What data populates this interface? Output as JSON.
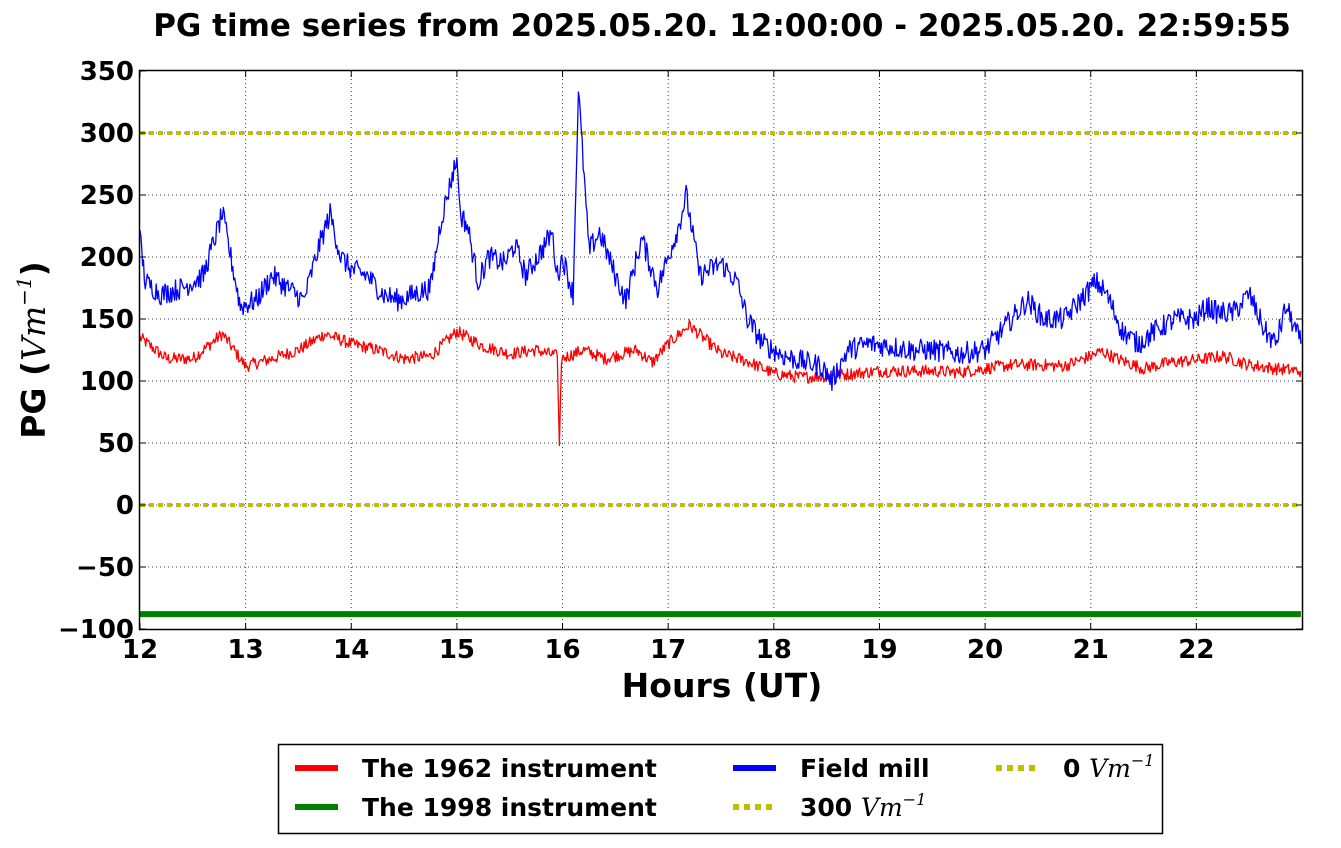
{
  "chart_data": {
    "type": "line",
    "title": "PG time series from 2025.05.20. 12:00:00 - 2025.05.20. 22:59:55",
    "xlabel": "Hours (UT)",
    "ylabel": "PG (",
    "ylabel_unit": "Vm",
    "ylabel_unit_exp": "−1",
    "ylabel_close": ")",
    "xlim": [
      12,
      23
    ],
    "ylim": [
      -100,
      350
    ],
    "x_ticks": [
      12,
      13,
      14,
      15,
      16,
      17,
      18,
      19,
      20,
      21,
      22
    ],
    "x_tick_labels": [
      "12",
      "13",
      "14",
      "15",
      "16",
      "17",
      "18",
      "19",
      "20",
      "21",
      "22"
    ],
    "y_ticks": [
      350,
      300,
      250,
      200,
      150,
      100,
      50,
      0,
      -50,
      -100
    ],
    "y_tick_labels": [
      "350",
      "300",
      "250",
      "200",
      "150",
      "100",
      "50",
      "0",
      "−50",
      "−100"
    ],
    "grid": true,
    "legend_position": "bottom-center, below plot",
    "series": [
      {
        "name": "The 1962 instrument",
        "color": "#ff0000",
        "style": "solid",
        "x": [
          12.0,
          12.25,
          12.5,
          12.78,
          13.0,
          13.25,
          13.5,
          13.75,
          14.0,
          14.25,
          14.5,
          14.75,
          15.0,
          15.25,
          15.5,
          15.75,
          15.95,
          15.97,
          15.99,
          16.2,
          16.4,
          16.7,
          16.85,
          17.0,
          17.2,
          17.5,
          17.75,
          18.0,
          18.25,
          18.5,
          18.75,
          19.0,
          19.25,
          19.5,
          19.75,
          20.0,
          20.25,
          20.5,
          20.75,
          21.0,
          21.1,
          21.25,
          21.5,
          21.75,
          22.0,
          22.25,
          22.5,
          22.75,
          22.99
        ],
        "y": [
          135,
          118,
          118,
          138,
          112,
          118,
          125,
          138,
          130,
          125,
          118,
          120,
          140,
          128,
          122,
          125,
          120,
          48,
          118,
          125,
          118,
          125,
          115,
          130,
          145,
          122,
          116,
          106,
          103,
          104,
          106,
          108,
          108,
          108,
          107,
          110,
          113,
          113,
          112,
          120,
          124,
          118,
          110,
          115,
          117,
          120,
          113,
          110,
          108
        ]
      },
      {
        "name": "The 1998 instrument",
        "color": "#008000",
        "style": "solid",
        "x": [
          12.0,
          22.99
        ],
        "y": [
          -88,
          -88
        ]
      },
      {
        "name": "Field mill",
        "color": "#0000ff",
        "style": "solid",
        "x": [
          12.0,
          12.05,
          12.2,
          12.4,
          12.6,
          12.78,
          12.95,
          13.1,
          13.25,
          13.4,
          13.55,
          13.7,
          13.8,
          13.9,
          14.0,
          14.15,
          14.3,
          14.45,
          14.6,
          14.75,
          14.85,
          15.0,
          15.03,
          15.1,
          15.2,
          15.3,
          15.45,
          15.55,
          15.65,
          15.8,
          15.9,
          15.95,
          16.0,
          16.1,
          16.15,
          16.25,
          16.35,
          16.5,
          16.6,
          16.75,
          16.9,
          17.0,
          17.1,
          17.17,
          17.3,
          17.5,
          17.65,
          17.75,
          17.9,
          18.1,
          18.3,
          18.45,
          18.55,
          18.7,
          18.9,
          19.1,
          19.3,
          19.5,
          19.75,
          20.0,
          20.2,
          20.4,
          20.55,
          20.75,
          20.9,
          21.05,
          21.15,
          21.3,
          21.45,
          21.6,
          21.8,
          22.0,
          22.1,
          22.2,
          22.35,
          22.5,
          22.65,
          22.75,
          22.85,
          22.99
        ],
        "y": [
          215,
          180,
          170,
          175,
          185,
          235,
          160,
          165,
          185,
          175,
          165,
          210,
          235,
          200,
          190,
          185,
          170,
          165,
          170,
          175,
          230,
          280,
          235,
          225,
          180,
          200,
          195,
          210,
          185,
          205,
          220,
          185,
          200,
          170,
          335,
          205,
          220,
          185,
          165,
          215,
          175,
          200,
          225,
          250,
          185,
          195,
          180,
          150,
          130,
          120,
          115,
          112,
          100,
          125,
          130,
          128,
          125,
          125,
          122,
          125,
          145,
          165,
          150,
          150,
          165,
          180,
          170,
          140,
          130,
          140,
          150,
          150,
          160,
          155,
          155,
          170,
          140,
          130,
          160,
          130
        ]
      },
      {
        "name": "300 Vm⁻¹",
        "color": "#bfbf00",
        "style": "dotted",
        "x": [
          12.0,
          22.99
        ],
        "y": [
          300,
          300
        ]
      },
      {
        "name": "0 Vm⁻¹",
        "color": "#bfbf00",
        "style": "dotted",
        "x": [
          12.0,
          22.99
        ],
        "y": [
          0,
          0
        ]
      }
    ]
  },
  "legend": {
    "entries": [
      {
        "label": "The 1962 instrument",
        "color": "#ff0000",
        "style": "solid"
      },
      {
        "label": "The 1998 instrument",
        "color": "#008000",
        "style": "solid"
      },
      {
        "label": "Field mill",
        "color": "#0000ff",
        "style": "solid"
      },
      {
        "label": "300 ",
        "unit": "Vm",
        "exp": "−1",
        "color": "#bfbf00",
        "style": "dotted"
      },
      {
        "label": "0 ",
        "unit": "Vm",
        "exp": "−1",
        "color": "#bfbf00",
        "style": "dotted"
      }
    ]
  }
}
